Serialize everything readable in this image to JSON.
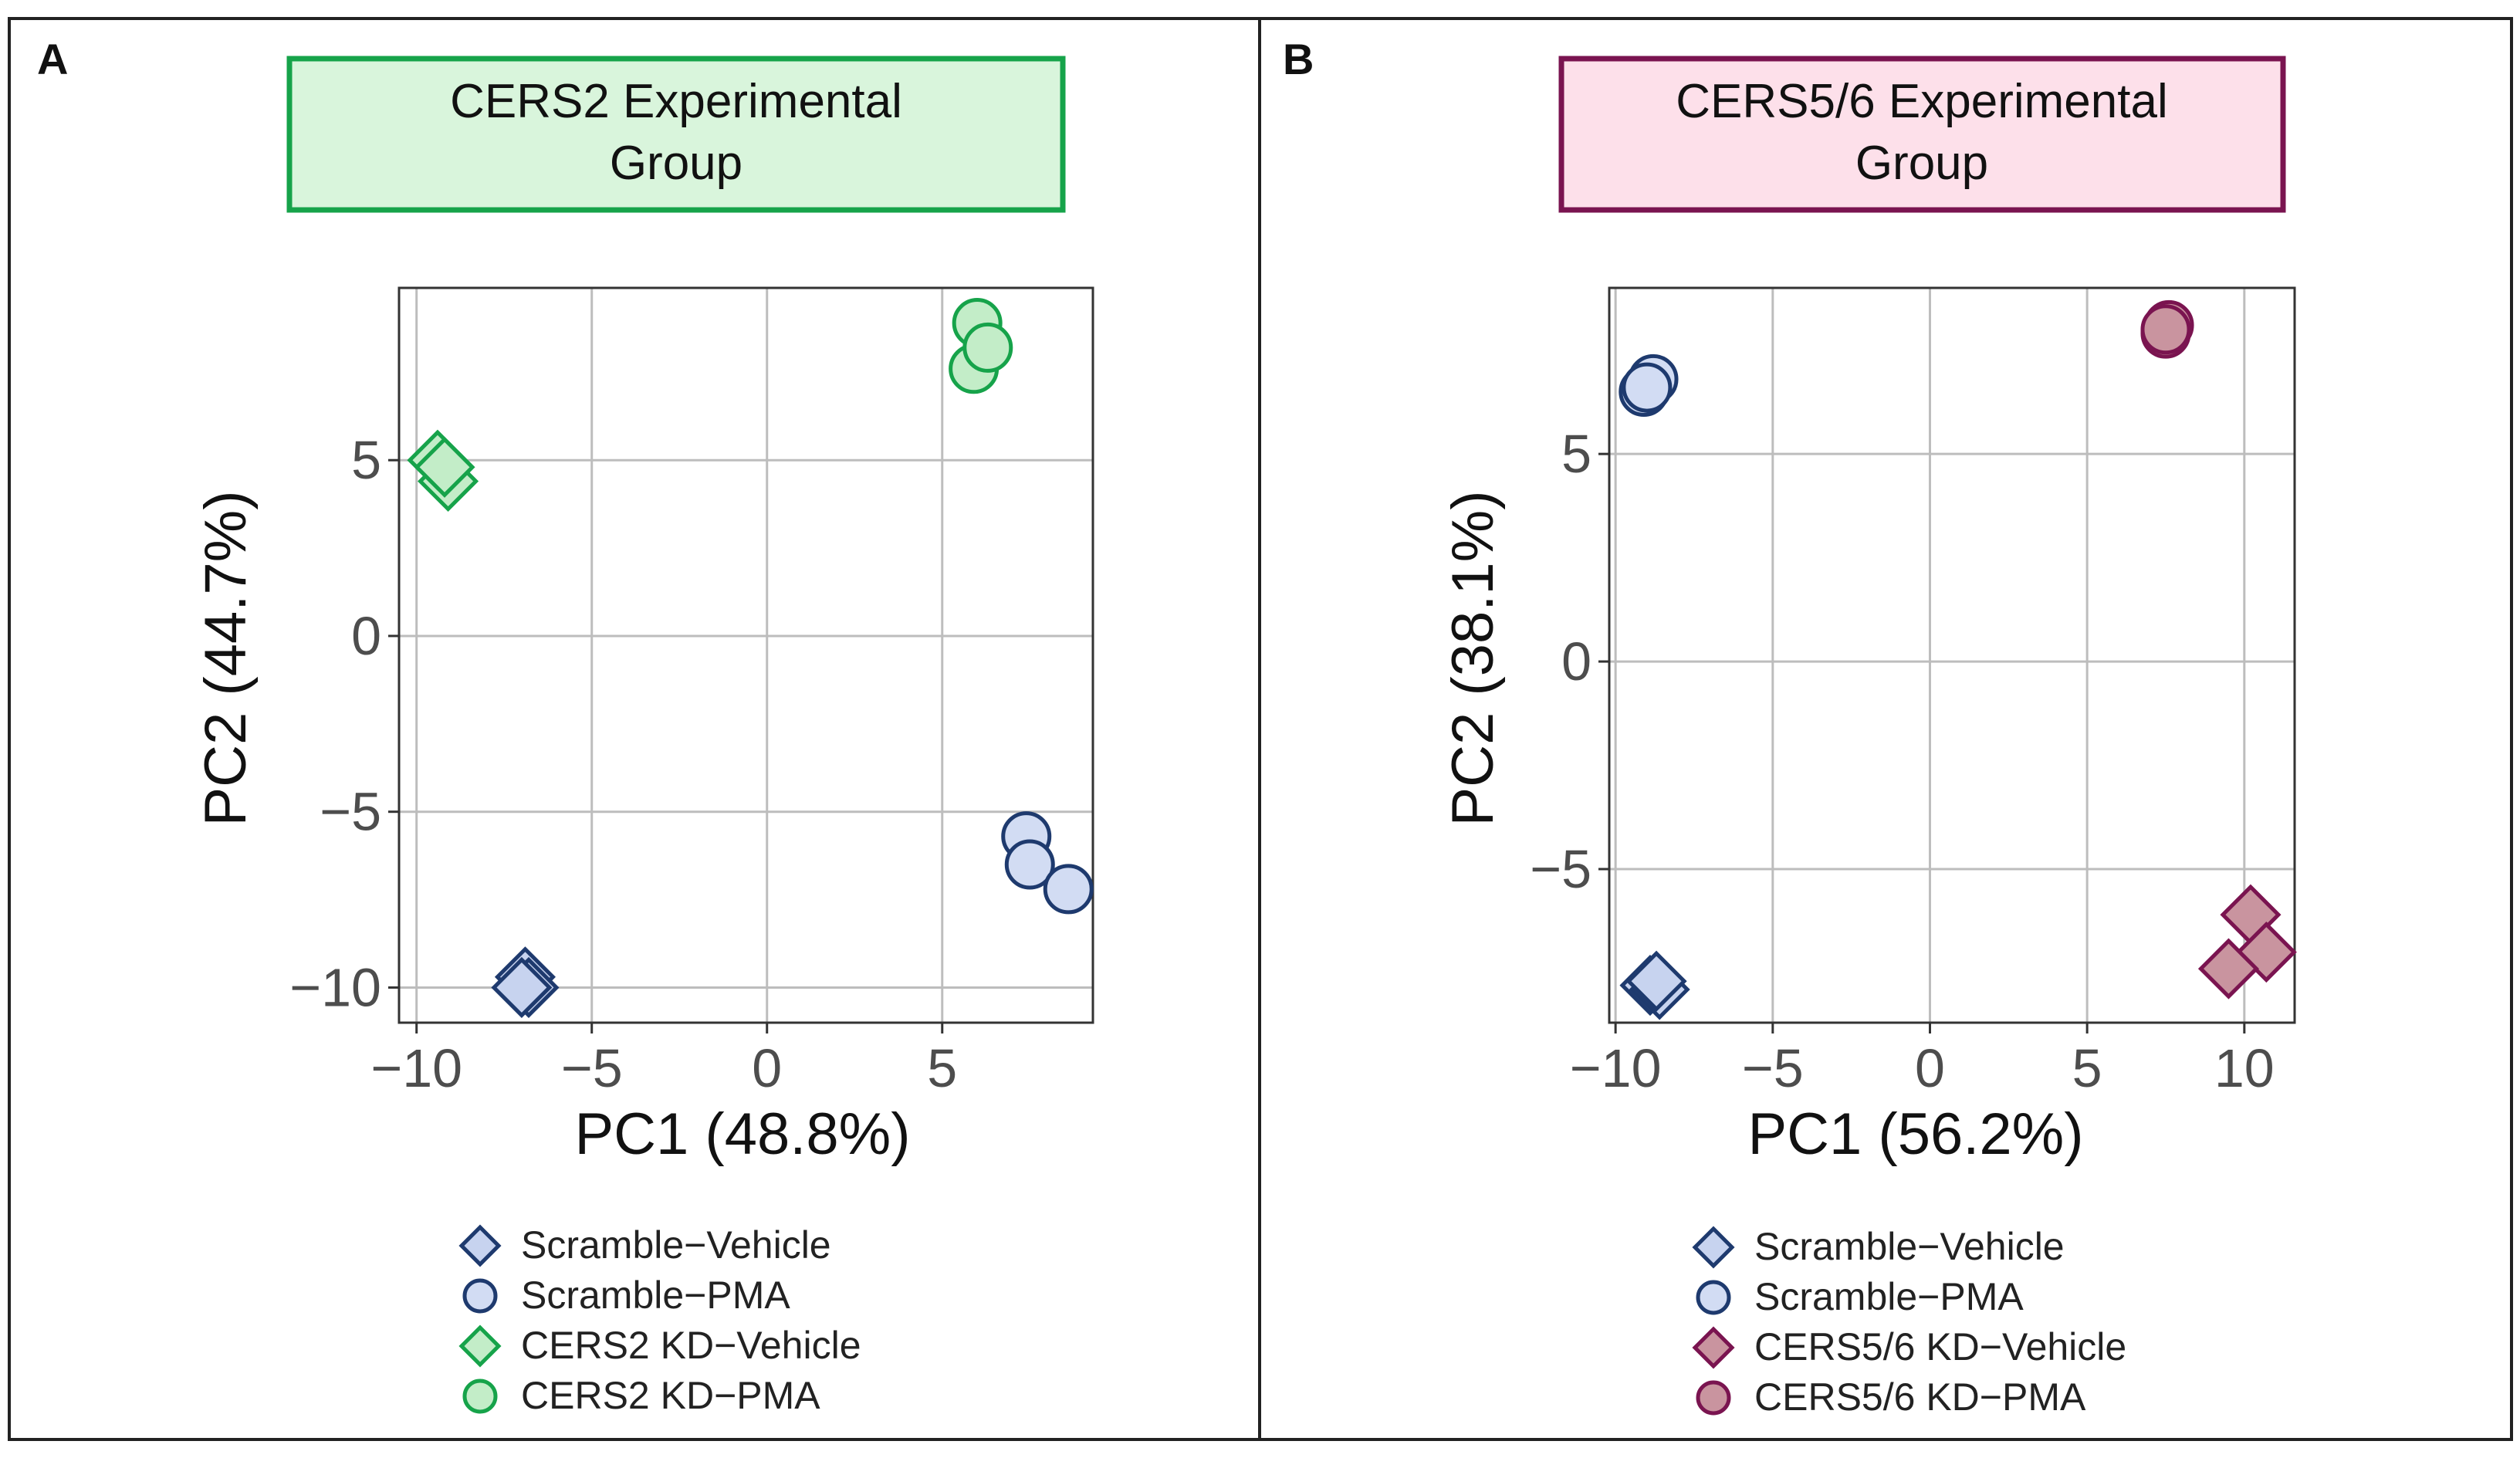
{
  "chart_data": [
    {
      "panel_label": "A",
      "type": "scatter",
      "title_line1": "CERS2 Experimental",
      "title_line2": "Group",
      "title_bg": "#d9f5dc",
      "title_border": "#16a34a",
      "xlabel": "PC1 (48.8%)",
      "ylabel": "PC2 (44.7%)",
      "xlim": [
        -10.5,
        9.3
      ],
      "ylim": [
        -11.0,
        9.9
      ],
      "xticks": [
        -10,
        -5,
        0,
        5
      ],
      "xtick_labels": [
        "−10",
        "−5",
        "0",
        "5"
      ],
      "yticks": [
        -10,
        -5,
        0,
        5
      ],
      "ytick_labels": [
        "−10",
        "−5",
        "0",
        "5"
      ],
      "grid": true,
      "legend_position": "bottom",
      "series": [
        {
          "name": "Scramble−Vehicle",
          "shape": "diamond",
          "fill": "#c7d3ef",
          "stroke": "#1e3a6e",
          "points": [
            [
              -6.9,
              -9.7
            ],
            [
              -6.8,
              -10.0
            ],
            [
              -7.0,
              -10.0
            ]
          ]
        },
        {
          "name": "Scramble−PMA",
          "shape": "circle",
          "fill": "#d2dcf3",
          "stroke": "#1e3a6e",
          "points": [
            [
              7.4,
              -5.7
            ],
            [
              7.5,
              -6.5
            ],
            [
              8.6,
              -7.2
            ]
          ]
        },
        {
          "name": "CERS2 KD−Vehicle",
          "shape": "diamond",
          "fill": "#c3edc8",
          "stroke": "#16a34a",
          "points": [
            [
              -9.1,
              4.4
            ],
            [
              -9.4,
              5.0
            ],
            [
              -9.2,
              4.8
            ]
          ]
        },
        {
          "name": "CERS2 KD−PMA",
          "shape": "circle",
          "fill": "#c3edc8",
          "stroke": "#16a34a",
          "points": [
            [
              5.9,
              7.6
            ],
            [
              6.0,
              8.9
            ],
            [
              6.3,
              8.2
            ]
          ]
        }
      ]
    },
    {
      "panel_label": "B",
      "type": "scatter",
      "title_line1": "CERS5/6 Experimental",
      "title_line2": "Group",
      "title_bg": "#fde0ea",
      "title_border": "#7a1450",
      "xlabel": "PC1 (56.2%)",
      "ylabel": "PC2 (38.1%)",
      "xlim": [
        -10.2,
        11.6
      ],
      "ylim": [
        -8.7,
        9.0
      ],
      "xticks": [
        -10,
        -5,
        0,
        5,
        10
      ],
      "xtick_labels": [
        "−10",
        "−5",
        "0",
        "5",
        "10"
      ],
      "yticks": [
        -5,
        0,
        5
      ],
      "ytick_labels": [
        "−5",
        "0",
        "5"
      ],
      "grid": true,
      "legend_position": "bottom",
      "series": [
        {
          "name": "Scramble−Vehicle",
          "shape": "diamond",
          "fill": "#c7d3ef",
          "stroke": "#1e3a6e",
          "points": [
            [
              -8.9,
              -7.8
            ],
            [
              -8.6,
              -7.9
            ],
            [
              -8.7,
              -7.7
            ]
          ]
        },
        {
          "name": "Scramble−PMA",
          "shape": "circle",
          "fill": "#d2dcf3",
          "stroke": "#1e3a6e",
          "points": [
            [
              -8.8,
              6.8
            ],
            [
              -9.1,
              6.5
            ],
            [
              -9.0,
              6.6
            ]
          ]
        },
        {
          "name": "CERS5/6 KD−Vehicle",
          "shape": "diamond",
          "fill": "#c9949f",
          "stroke": "#7a1450",
          "points": [
            [
              10.2,
              -6.1
            ],
            [
              10.7,
              -7.0
            ],
            [
              9.5,
              -7.4
            ]
          ]
        },
        {
          "name": "CERS5/6 KD−PMA",
          "shape": "circle",
          "fill": "#c9949f",
          "stroke": "#7a1450",
          "points": [
            [
              7.5,
              7.9
            ],
            [
              7.6,
              8.1
            ],
            [
              7.5,
              8.0
            ]
          ]
        }
      ]
    }
  ]
}
